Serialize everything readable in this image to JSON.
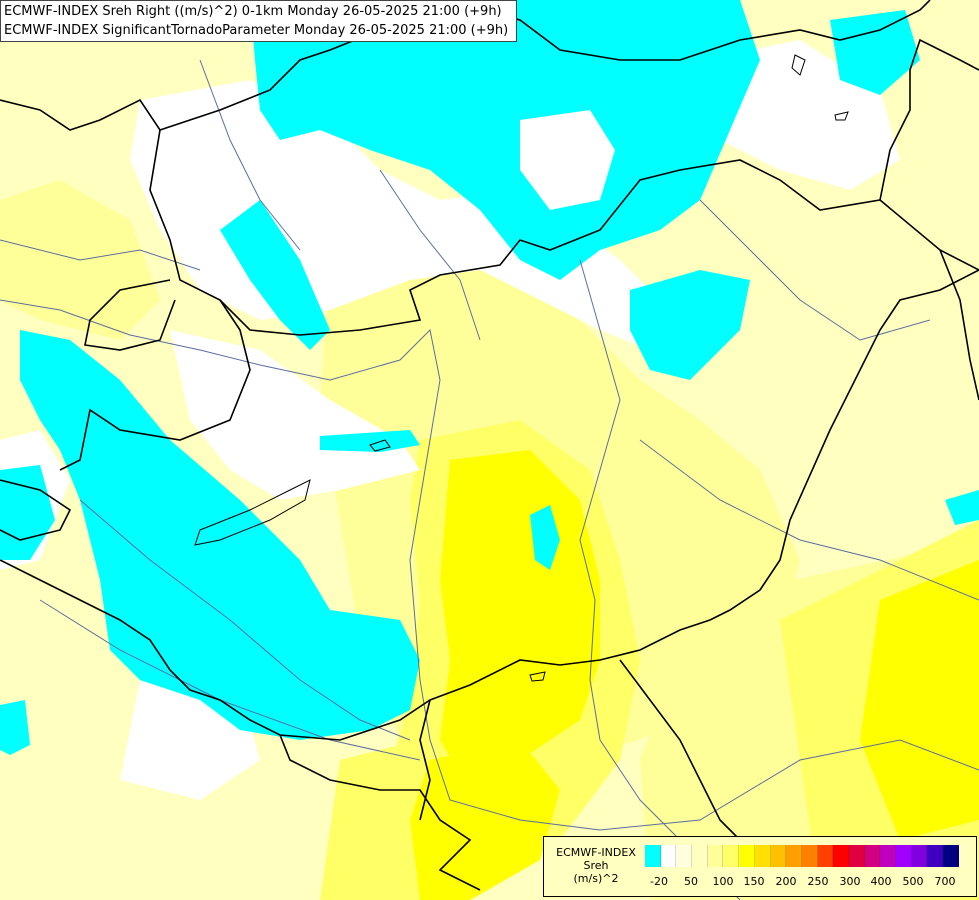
{
  "title": {
    "line1": "ECMWF-INDEX Sreh Right ((m/s)^2) 0-1km Monday 26-05-2025 21:00 (+9h)",
    "line2": "ECMWF-INDEX SignificantTornadoParameter Monday 26-05-2025 21:00 (+9h)"
  },
  "legend": {
    "line1": "ECMWF-INDEX",
    "line2": "Sreh",
    "line3": "(m/s)^2",
    "colors": [
      "#00ffff",
      "#ffffff",
      "#ffffe0",
      "#ffffc0",
      "#ffff99",
      "#ffff66",
      "#ffff00",
      "#ffe000",
      "#ffc000",
      "#ffa000",
      "#ff8000",
      "#ff4000",
      "#ff0000",
      "#e00040",
      "#d00080",
      "#c000c0",
      "#a000ff",
      "#8000e0",
      "#4000c0",
      "#000080"
    ],
    "ticks": [
      "-20",
      "50",
      "100",
      "150",
      "200",
      "250",
      "300",
      "400",
      "500",
      "700"
    ]
  },
  "colors": {
    "cyan": "#00ffff",
    "white": "#ffffff",
    "pale_yellow": "#ffffc0",
    "light_yellow": "#ffff99",
    "yellow": "#ffff66",
    "bright_yellow": "#ffff00",
    "border": "#000000",
    "river": "#5a6ea0"
  }
}
